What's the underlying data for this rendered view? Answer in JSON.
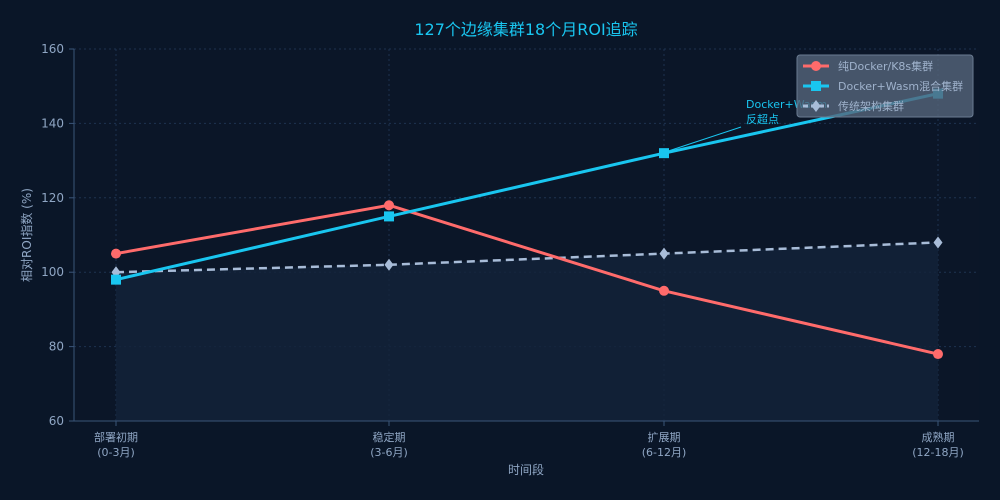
{
  "chart_data": {
    "type": "line",
    "title": "127个边缘集群18个月ROI追踪",
    "xlabel": "时间段",
    "ylabel": "相对ROI指数 (%)",
    "ylim": [
      60,
      160
    ],
    "yticks": [
      60,
      80,
      100,
      120,
      140,
      160
    ],
    "categories": [
      {
        "name": "部署初期",
        "range": "(0-3月)"
      },
      {
        "name": "稳定期",
        "range": "(3-6月)"
      },
      {
        "name": "扩展期",
        "range": "(6-12月)"
      },
      {
        "name": "成熟期",
        "range": "(12-18月)"
      }
    ],
    "series": [
      {
        "name": "纯Docker/K8s集群",
        "values": [
          105,
          118,
          95,
          78
        ],
        "color": "#ff6b6b",
        "marker": "circle",
        "dash": "solid"
      },
      {
        "name": "Docker+Wasm混合集群",
        "values": [
          98,
          115,
          132,
          148
        ],
        "color": "#19c6f0",
        "marker": "square",
        "dash": "solid"
      },
      {
        "name": "传统架构集群",
        "values": [
          100,
          102,
          105,
          108
        ],
        "color": "#a8bcd8",
        "marker": "diamond",
        "dash": "dashed"
      }
    ],
    "annotation": {
      "lines": [
        "Docker+Wasm",
        "反超点"
      ],
      "category_index": 2,
      "value": 132
    },
    "legend_position": "top-right",
    "grid": true
  }
}
